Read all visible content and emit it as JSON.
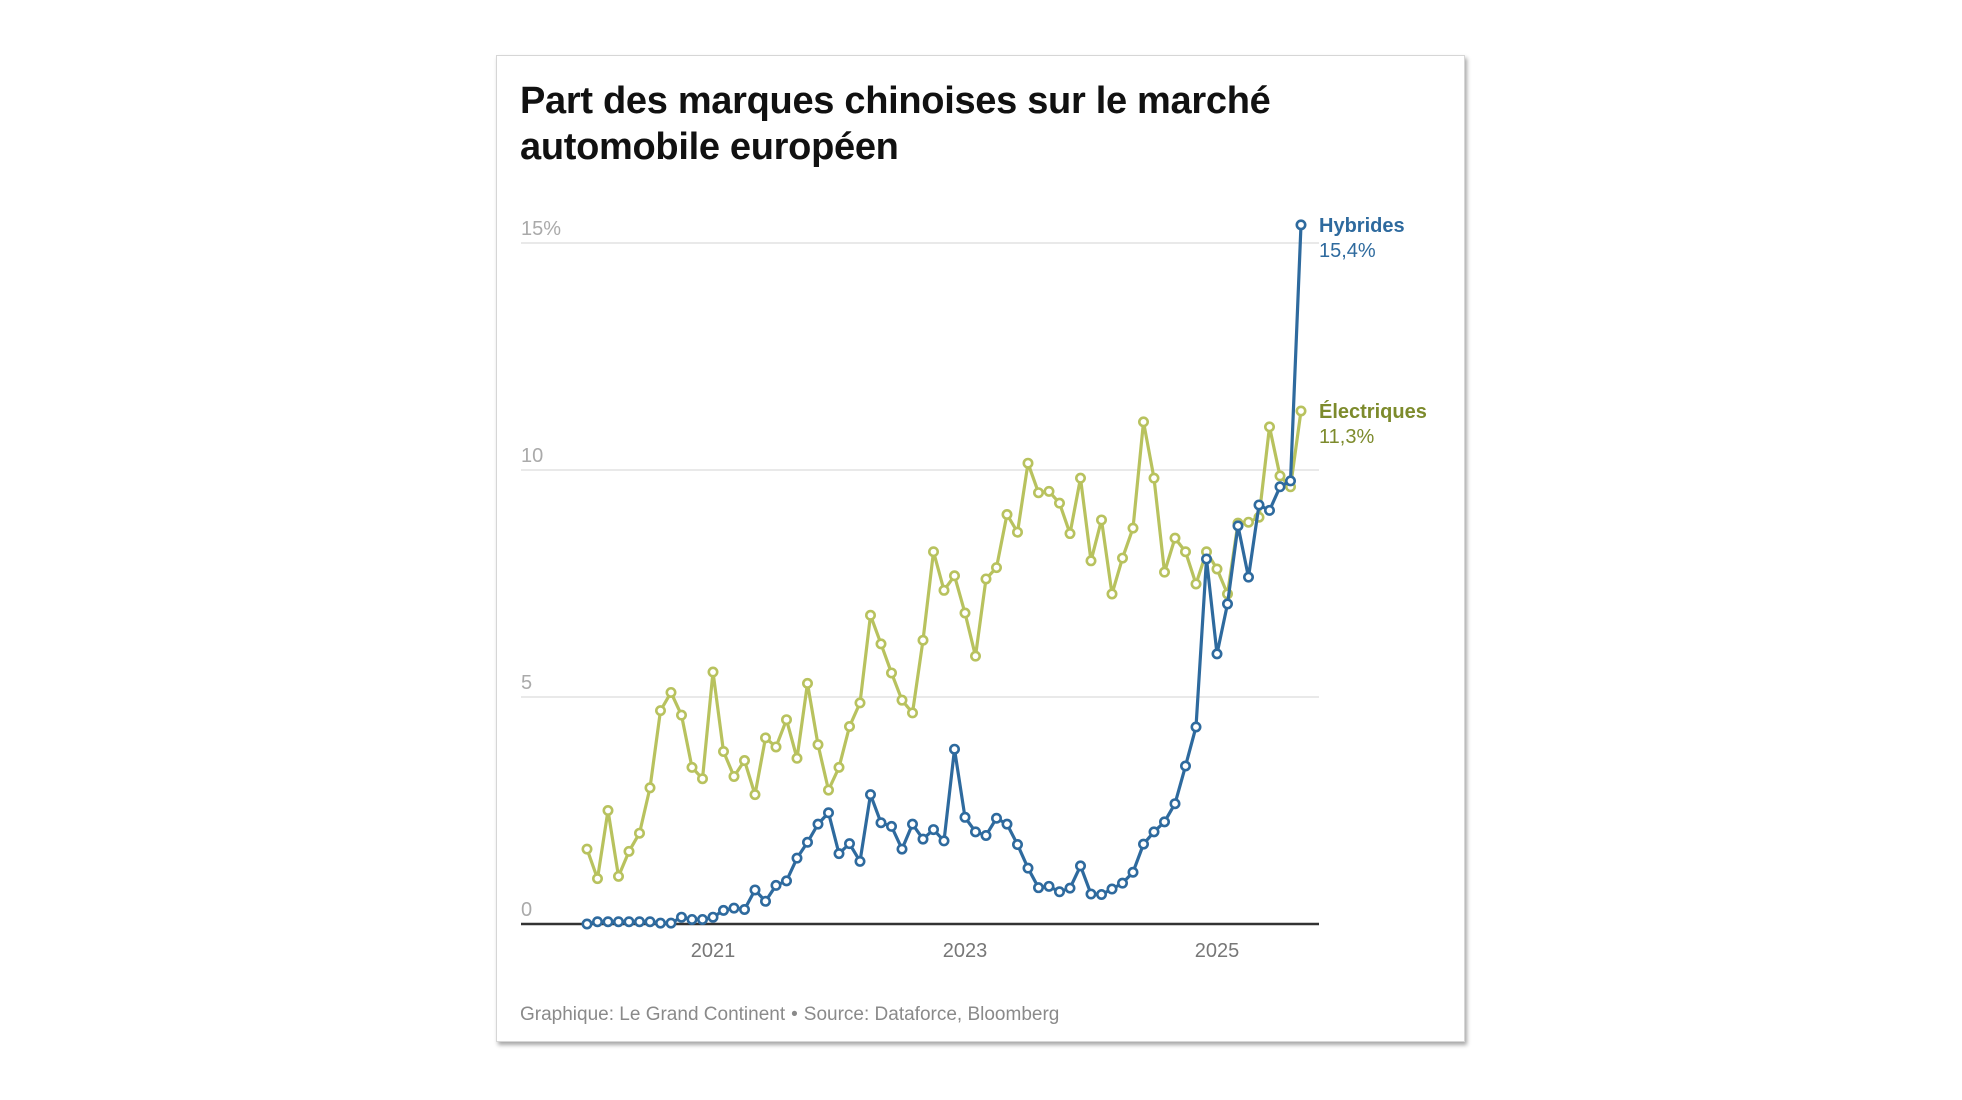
{
  "chart_data": {
    "type": "line",
    "title": "Part des marques chinoises sur le marché automobile européen",
    "xlabel": "",
    "ylabel": "",
    "x_start": "2020-01",
    "x_end": "2025-09",
    "x_frequency": "monthly",
    "x_ticks": [
      "2021",
      "2023",
      "2025"
    ],
    "x_tick_months": [
      "2021-01",
      "2023-01",
      "2025-01"
    ],
    "y_ticks": [
      {
        "value": 0,
        "label": "0"
      },
      {
        "value": 5,
        "label": "5"
      },
      {
        "value": 10,
        "label": "10"
      },
      {
        "value": 15,
        "label": "15%"
      }
    ],
    "ylim": [
      0,
      15
    ],
    "grid": "horizontal",
    "legend": "direct-labels-right",
    "series": [
      {
        "name": "Électriques",
        "end_label": "11,3%",
        "color": "#b8c25e",
        "label_color": "#7d8b2c",
        "values": [
          1.65,
          1.0,
          2.5,
          1.05,
          1.6,
          2.0,
          3.0,
          4.7,
          5.1,
          4.6,
          3.45,
          3.2,
          5.55,
          3.8,
          3.25,
          3.6,
          2.85,
          4.1,
          3.9,
          4.5,
          3.65,
          5.3,
          3.95,
          2.95,
          3.45,
          4.35,
          4.87,
          6.8,
          6.17,
          5.53,
          4.93,
          4.65,
          6.25,
          8.2,
          7.35,
          7.67,
          6.85,
          5.9,
          7.6,
          7.85,
          9.02,
          8.63,
          10.15,
          9.5,
          9.53,
          9.27,
          8.6,
          9.82,
          8.0,
          8.9,
          7.27,
          8.06,
          8.72,
          11.06,
          9.82,
          7.75,
          8.5,
          8.2,
          7.49,
          8.2,
          7.82,
          7.27,
          8.83,
          8.85,
          8.96,
          10.95,
          9.87,
          9.63,
          11.3
        ]
      },
      {
        "name": "Hybrides",
        "end_label": "15,4%",
        "color": "#2e6a9e",
        "label_color": "#2e6a9e",
        "values": [
          0.0,
          0.05,
          0.05,
          0.05,
          0.05,
          0.05,
          0.05,
          0.02,
          0.02,
          0.15,
          0.1,
          0.1,
          0.15,
          0.3,
          0.35,
          0.32,
          0.75,
          0.5,
          0.85,
          0.95,
          1.45,
          1.8,
          2.2,
          2.45,
          1.55,
          1.77,
          1.38,
          2.85,
          2.23,
          2.15,
          1.65,
          2.2,
          1.87,
          2.08,
          1.83,
          3.85,
          2.35,
          2.03,
          1.95,
          2.33,
          2.2,
          1.75,
          1.23,
          0.8,
          0.83,
          0.71,
          0.79,
          1.28,
          0.66,
          0.65,
          0.77,
          0.9,
          1.14,
          1.76,
          2.03,
          2.25,
          2.65,
          3.48,
          4.34,
          8.04,
          5.95,
          7.05,
          8.77,
          7.64,
          9.23,
          9.11,
          9.63,
          9.76,
          15.4
        ]
      }
    ]
  },
  "footer": {
    "credit": "Graphique: Le Grand Continent",
    "separator": "•",
    "source": "Source: Dataforce, Bloomberg"
  }
}
